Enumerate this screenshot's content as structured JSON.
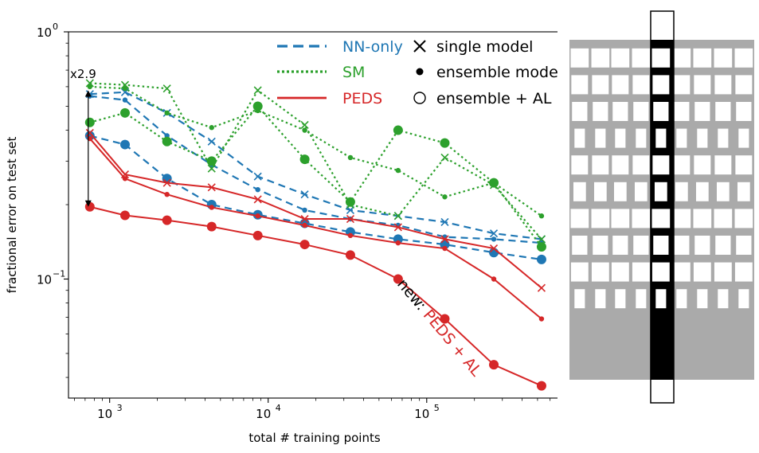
{
  "chart_data": {
    "type": "line",
    "xlabel": "total # training points",
    "ylabel": "fractional error on test set",
    "xscale": "log",
    "yscale": "log",
    "xlim": [
      550,
      700000
    ],
    "ylim": [
      0.033,
      1.0
    ],
    "x_ticks": [
      {
        "value": 1000,
        "base": "10",
        "exp": "3"
      },
      {
        "value": 10000,
        "base": "10",
        "exp": "4"
      },
      {
        "value": 100000,
        "base": "10",
        "exp": "5"
      }
    ],
    "y_ticks": [
      {
        "value": 1.0,
        "base": "10",
        "exp": "0"
      },
      {
        "value": 0.1,
        "base": "10",
        "exp": "−1"
      }
    ],
    "x": [
      750,
      1250,
      2300,
      4400,
      8600,
      17000,
      33000,
      66000,
      130000,
      265000,
      530000
    ],
    "colors": {
      "nn": "#1f77b4",
      "sm": "#2ca02c",
      "peds": "#d62728"
    },
    "series": [
      {
        "method": "nn",
        "variant": "single",
        "style": "dash",
        "marker": "x",
        "values": [
          0.56,
          0.57,
          0.47,
          0.36,
          0.26,
          0.22,
          0.19,
          0.18,
          0.17,
          0.153,
          0.145
        ]
      },
      {
        "method": "nn",
        "variant": "ensemble",
        "style": "dash",
        "marker": "dot",
        "values": [
          0.55,
          0.53,
          0.38,
          0.29,
          0.23,
          0.19,
          0.175,
          0.165,
          0.148,
          0.145,
          0.14
        ]
      },
      {
        "method": "nn",
        "variant": "ensemble_al",
        "style": "dash",
        "marker": "circle",
        "values": [
          0.38,
          0.35,
          0.255,
          0.2,
          0.182,
          0.168,
          0.155,
          0.145,
          0.138,
          0.128,
          0.12
        ]
      },
      {
        "method": "sm",
        "variant": "single",
        "style": "dot",
        "marker": "x",
        "values": [
          0.62,
          0.61,
          0.59,
          0.28,
          0.58,
          0.42,
          0.2,
          0.18,
          0.31,
          0.24,
          0.145
        ]
      },
      {
        "method": "sm",
        "variant": "ensemble",
        "style": "dot",
        "marker": "dot",
        "values": [
          0.6,
          0.59,
          0.47,
          0.41,
          0.48,
          0.4,
          0.31,
          0.275,
          0.215,
          0.245,
          0.18
        ]
      },
      {
        "method": "sm",
        "variant": "ensemble_al",
        "style": "dot",
        "marker": "circle",
        "values": [
          0.43,
          0.47,
          0.36,
          0.3,
          0.5,
          0.305,
          0.205,
          0.4,
          0.355,
          0.245,
          0.135
        ]
      },
      {
        "method": "peds",
        "variant": "single",
        "style": "solid",
        "marker": "x",
        "values": [
          0.39,
          0.265,
          0.245,
          0.235,
          0.21,
          0.175,
          0.175,
          0.162,
          0.145,
          0.133,
          0.092
        ]
      },
      {
        "method": "peds",
        "variant": "ensemble",
        "style": "solid",
        "marker": "dot",
        "values": [
          0.37,
          0.255,
          0.22,
          0.195,
          0.18,
          0.165,
          0.15,
          0.14,
          0.133,
          0.1,
          0.069
        ]
      },
      {
        "method": "peds",
        "variant": "ensemble_al",
        "style": "solid",
        "marker": "circle",
        "values": [
          0.196,
          0.181,
          0.173,
          0.163,
          0.15,
          0.138,
          0.125,
          0.1,
          0.069,
          0.045,
          0.037
        ]
      }
    ],
    "legend": {
      "placement": "top-right",
      "methods": [
        {
          "label": "NN-only",
          "color": "#1f77b4",
          "style": "dash"
        },
        {
          "label": "SM",
          "color": "#2ca02c",
          "style": "dot"
        },
        {
          "label": "PEDS",
          "color": "#d62728",
          "style": "solid"
        }
      ],
      "markers": [
        {
          "label": "single model",
          "marker": "x"
        },
        {
          "label": "ensemble model",
          "marker": "dot"
        },
        {
          "label": "ensemble + AL",
          "marker": "circle"
        }
      ]
    },
    "annotations": {
      "ratio": {
        "text": "x2.9",
        "x": 750,
        "y_top": 0.58,
        "y_bottom": 0.196
      },
      "new_prefix": "new: ",
      "new_label": "PEDS + AL"
    }
  },
  "geometry_figure": {
    "background": "#aaaaaa",
    "hole_color": "#ffffff",
    "strip_color": "#000000",
    "hole_row_widths": [
      0.52,
      0.48,
      0.44,
      0.3,
      0.48,
      0.36,
      0.54,
      0.44,
      0.5,
      0.3
    ]
  }
}
